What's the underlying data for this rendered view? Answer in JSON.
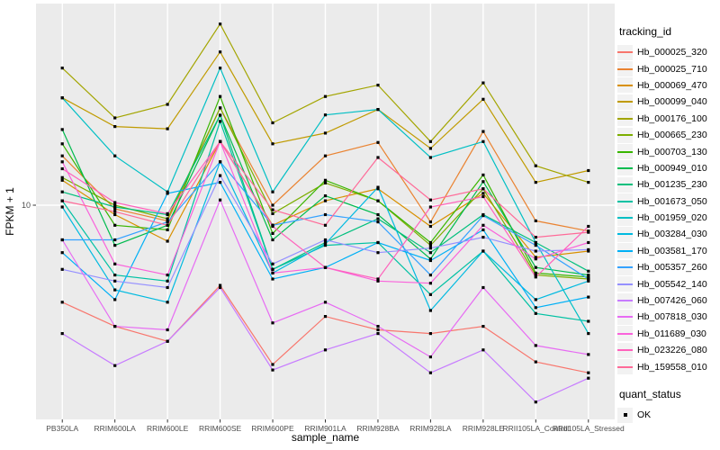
{
  "figure": {
    "background": "#FFFFFF",
    "panel_background": "#EBEBEB",
    "gridline_color": "#FFFFFF",
    "axis_text_color": "#4D4D4D",
    "axis_title_color": "#000000",
    "point_color": "#000000",
    "legend_key_background": "#F2F2F2"
  },
  "chart_data": {
    "type": "line",
    "title": "",
    "xlabel": "sample_name",
    "ylabel": "FPKM + 1",
    "y_scale": "log10",
    "y_ticks": [
      10
    ],
    "y_tick_labels": [
      "10"
    ],
    "ylim": [
      0.92,
      94
    ],
    "grid": true,
    "point_marker": "square",
    "categories": [
      "PB350LA",
      "RRIM600LA",
      "RRIM600LE",
      "RRIM600SE",
      "RRIM600PE",
      "RRIM901LA",
      "RRIM928BA",
      "RRIM928LA",
      "RRIM928LE",
      "RRII105LA_Control",
      "RRII105LA_Stressed"
    ],
    "series": [
      {
        "name": "Hb_000025_320",
        "color": "#F8766D",
        "values": [
          3.4,
          2.6,
          2.2,
          4.1,
          1.7,
          2.9,
          2.5,
          2.4,
          2.6,
          1.75,
          1.55
        ]
      },
      {
        "name": "Hb_000025_710",
        "color": "#EA8331",
        "values": [
          17.3,
          9.6,
          8.4,
          29.5,
          10.0,
          17.3,
          20.1,
          8.3,
          22.7,
          8.4,
          7.5
        ]
      },
      {
        "name": "Hb_000069_470",
        "color": "#D89000",
        "values": [
          13.2,
          9.0,
          6.7,
          20.3,
          8.0,
          10.5,
          12.0,
          7.9,
          11.4,
          5.6,
          6.0
        ]
      },
      {
        "name": "Hb_000099_040",
        "color": "#C09B00",
        "values": [
          33.0,
          24.0,
          23.4,
          55.0,
          19.8,
          22.3,
          29.0,
          18.8,
          32.5,
          12.9,
          14.7
        ]
      },
      {
        "name": "Hb_000176_100",
        "color": "#A3A500",
        "values": [
          46.0,
          26.4,
          30.7,
          75.0,
          25.0,
          33.5,
          38.0,
          20.3,
          39.0,
          15.5,
          12.9
        ]
      },
      {
        "name": "Hb_000665_230",
        "color": "#7CAE00",
        "values": [
          13.6,
          10.0,
          8.6,
          29.5,
          9.1,
          12.8,
          10.5,
          6.4,
          12.0,
          4.6,
          4.4
        ]
      },
      {
        "name": "Hb_000703_130",
        "color": "#39B600",
        "values": [
          19.8,
          8.0,
          7.6,
          33.5,
          7.3,
          13.2,
          10.5,
          6.6,
          14.0,
          4.7,
          4.5
        ]
      },
      {
        "name": "Hb_000949_010",
        "color": "#00BB4E",
        "values": [
          23.2,
          6.4,
          8.0,
          27.2,
          6.8,
          11.1,
          9.0,
          5.5,
          13.0,
          5.0,
          4.6
        ]
      },
      {
        "name": "Hb_001235_230",
        "color": "#00BF7D",
        "values": [
          11.6,
          9.8,
          9.0,
          27.2,
          4.9,
          6.6,
          8.6,
          5.9,
          9.0,
          6.6,
          4.8
        ]
      },
      {
        "name": "Hb_001673_050",
        "color": "#00C1A3",
        "values": [
          10.5,
          4.6,
          4.3,
          25.4,
          4.9,
          6.4,
          6.6,
          3.7,
          6.0,
          3.0,
          2.75
        ]
      },
      {
        "name": "Hb_001959_020",
        "color": "#00BFC4",
        "values": [
          33.0,
          17.3,
          11.6,
          46.0,
          11.6,
          27.3,
          29.0,
          17.0,
          20.3,
          6.6,
          2.4
        ]
      },
      {
        "name": "Hb_003284_030",
        "color": "#00BAE0",
        "values": [
          9.8,
          3.9,
          3.4,
          16.2,
          4.7,
          6.5,
          12.2,
          3.1,
          6.0,
          3.5,
          4.3
        ]
      },
      {
        "name": "Hb_003581_170",
        "color": "#00B0F6",
        "values": [
          5.9,
          3.5,
          11.4,
          12.9,
          4.4,
          5.0,
          6.6,
          5.4,
          7.6,
          3.2,
          3.6
        ]
      },
      {
        "name": "Hb_005357_260",
        "color": "#35A2FF",
        "values": [
          6.8,
          6.8,
          8.3,
          16.2,
          8.0,
          9.0,
          8.3,
          4.6,
          8.9,
          6.4,
          4.4
        ]
      },
      {
        "name": "Hb_005542_140",
        "color": "#9590FF",
        "values": [
          4.9,
          4.3,
          4.0,
          13.9,
          5.2,
          6.8,
          5.9,
          6.2,
          7.0,
          6.0,
          6.1
        ]
      },
      {
        "name": "Hb_007426_060",
        "color": "#C77CFF",
        "values": [
          2.4,
          1.68,
          2.2,
          4.0,
          1.6,
          2.0,
          2.4,
          1.55,
          2.0,
          1.12,
          1.46
        ]
      },
      {
        "name": "Hb_007818_030",
        "color": "#E76BF3",
        "values": [
          6.8,
          2.6,
          2.5,
          10.6,
          2.7,
          3.4,
          2.6,
          1.85,
          4.0,
          2.1,
          1.9
        ]
      },
      {
        "name": "Hb_011689_030",
        "color": "#FA62DB",
        "values": [
          16.2,
          5.2,
          4.6,
          20.3,
          4.7,
          5.0,
          4.3,
          4.2,
          8.0,
          5.5,
          6.6
        ]
      },
      {
        "name": "Hb_023226_080",
        "color": "#FF62BC",
        "values": [
          15.0,
          10.3,
          9.1,
          20.3,
          7.9,
          5.0,
          4.4,
          9.8,
          11.0,
          4.5,
          7.9
        ]
      },
      {
        "name": "Hb_159558_010",
        "color": "#FF6A98",
        "values": [
          10.5,
          9.3,
          8.0,
          20.3,
          9.5,
          8.0,
          17.0,
          10.6,
          12.0,
          7.0,
          7.4
        ]
      }
    ],
    "legend": {
      "position": "right",
      "series_title": "tracking_id",
      "status_title": "quant_status",
      "status_items": [
        {
          "label": "OK",
          "shape": "square",
          "color": "#000000"
        }
      ]
    }
  }
}
